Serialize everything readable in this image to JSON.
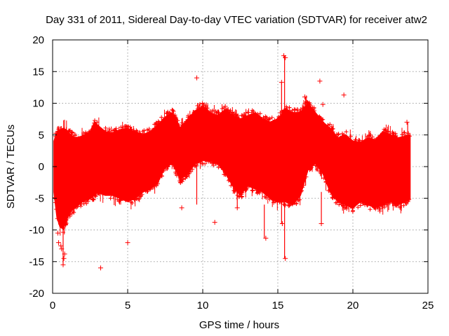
{
  "chart_data": {
    "type": "scatter",
    "title": "Day 331 of 2011, Sidereal Day-to-day VTEC variation (SDTVAR) for receiver atw2",
    "xlabel": "GPS time / hours",
    "ylabel": "SDTVAR / TECUs",
    "xlim": [
      0,
      25
    ],
    "ylim": [
      -20,
      20
    ],
    "xticks": [
      0,
      5,
      10,
      15,
      20,
      25
    ],
    "yticks": [
      -20,
      -15,
      -10,
      -5,
      0,
      5,
      10,
      15,
      20
    ],
    "grid": true,
    "marker": "+",
    "color": "#ff0000",
    "series": [
      {
        "name": "SDTVAR",
        "envelope": {
          "x": [
            0.1,
            0.3,
            0.5,
            0.7,
            0.9,
            1.2,
            1.5,
            2.0,
            2.5,
            2.8,
            3.0,
            3.5,
            4.0,
            4.5,
            5.0,
            5.5,
            6.0,
            6.5,
            7.0,
            7.5,
            8.0,
            8.5,
            9.0,
            9.5,
            10.0,
            10.5,
            11.0,
            11.5,
            12.0,
            12.5,
            13.0,
            13.5,
            14.0,
            14.5,
            15.0,
            15.5,
            16.0,
            16.5,
            17.0,
            17.5,
            18.0,
            18.5,
            19.0,
            19.5,
            20.0,
            20.5,
            21.0,
            21.5,
            22.0,
            22.5,
            23.0,
            23.5,
            23.8
          ],
          "upper": [
            4.0,
            5.5,
            5.8,
            6.0,
            5.8,
            5.0,
            4.5,
            4.8,
            5.5,
            7.0,
            6.5,
            5.5,
            5.3,
            5.8,
            6.0,
            5.5,
            5.0,
            5.5,
            6.5,
            7.8,
            8.5,
            6.0,
            7.5,
            8.8,
            9.5,
            8.5,
            8.0,
            9.0,
            8.0,
            7.5,
            8.0,
            8.5,
            7.5,
            7.0,
            7.5,
            9.0,
            8.5,
            8.5,
            10.0,
            8.5,
            7.0,
            6.0,
            4.5,
            5.0,
            4.0,
            3.8,
            4.5,
            4.2,
            5.5,
            5.0,
            4.5,
            4.8,
            5.0
          ],
          "lower": [
            -4.0,
            -8.0,
            -9.5,
            -9.8,
            -8.5,
            -7.0,
            -6.5,
            -5.5,
            -5.0,
            -4.5,
            -4.0,
            -4.5,
            -4.5,
            -5.0,
            -5.5,
            -5.0,
            -4.0,
            -3.5,
            -2.5,
            0.0,
            0.5,
            -2.0,
            -1.0,
            0.5,
            1.0,
            1.0,
            0.5,
            -1.0,
            -3.0,
            -4.5,
            -3.0,
            -3.5,
            -4.0,
            -5.0,
            -5.5,
            -5.5,
            -6.0,
            -4.5,
            -0.5,
            0.5,
            -1.0,
            -4.0,
            -5.5,
            -6.0,
            -6.5,
            -5.5,
            -6.0,
            -6.5,
            -6.0,
            -5.5,
            -6.0,
            -5.5,
            -5.0
          ]
        },
        "outliers": [
          [
            0.35,
            -10.5
          ],
          [
            0.4,
            -12.0
          ],
          [
            0.55,
            -12.5
          ],
          [
            0.6,
            -13.0
          ],
          [
            0.7,
            -15.5
          ],
          [
            0.75,
            -14.5
          ],
          [
            0.8,
            -13.8
          ],
          [
            3.2,
            -16.0
          ],
          [
            5.0,
            -12.0
          ],
          [
            9.6,
            14.0
          ],
          [
            8.6,
            -6.5
          ],
          [
            10.8,
            -8.8
          ],
          [
            12.3,
            -6.5
          ],
          [
            14.2,
            -11.3
          ],
          [
            15.4,
            17.5
          ],
          [
            15.5,
            17.2
          ],
          [
            15.25,
            13.3
          ],
          [
            15.5,
            -14.5
          ],
          [
            15.3,
            -9.0
          ],
          [
            17.0,
            10.0
          ],
          [
            17.8,
            13.5
          ],
          [
            18.0,
            9.8
          ],
          [
            19.4,
            11.3
          ],
          [
            17.9,
            -9.0
          ],
          [
            18.5,
            5.0
          ],
          [
            23.6,
            7.0
          ],
          [
            0.5,
            5.5
          ],
          [
            11.5,
            9.5
          ],
          [
            16.8,
            11.0
          ],
          [
            21.8,
            -7.0
          ]
        ],
        "spikes": [
          {
            "x": 15.45,
            "y_low": -14.5,
            "y_high": 17.5
          },
          {
            "x": 15.25,
            "y_low": -9.0,
            "y_high": 13.3
          },
          {
            "x": 0.7,
            "y_low": -15.5,
            "y_high": -9.5
          },
          {
            "x": 9.6,
            "y_low": -6.0,
            "y_high": 9.0
          },
          {
            "x": 16.85,
            "y_low": -3.0,
            "y_high": 11.0
          },
          {
            "x": 17.9,
            "y_low": -9.0,
            "y_high": -4.0
          },
          {
            "x": 23.65,
            "y_low": -6.0,
            "y_high": 7.0
          },
          {
            "x": 12.3,
            "y_low": -6.5,
            "y_high": -3.0
          },
          {
            "x": 14.1,
            "y_low": -11.3,
            "y_high": -6.0
          }
        ]
      }
    ]
  }
}
